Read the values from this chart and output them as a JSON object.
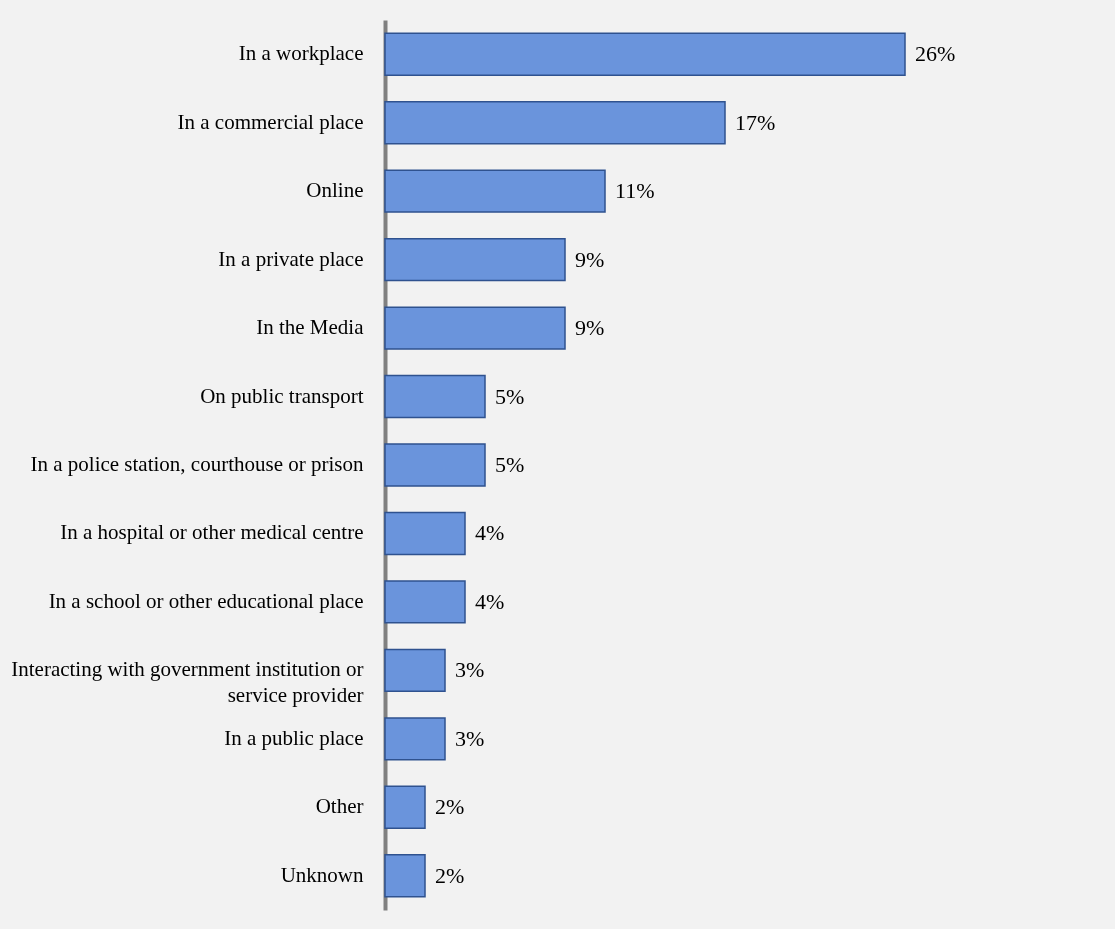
{
  "chart_data": {
    "type": "bar",
    "orientation": "horizontal",
    "categories": [
      "In a workplace",
      "In a commercial place",
      "Online",
      "In a private place",
      "In the Media",
      "On public transport",
      "In a police station, courthouse or prison",
      "In a hospital or other medical centre",
      "In a school or other educational place",
      "Interacting with government institution or service provider",
      "In a public place",
      "Other",
      "Unknown"
    ],
    "values": [
      26,
      17,
      11,
      9,
      9,
      5,
      5,
      4,
      4,
      3,
      3,
      2,
      2
    ],
    "value_labels": [
      "26%",
      "17%",
      "11%",
      "9%",
      "9%",
      "5%",
      "5%",
      "4%",
      "4%",
      "3%",
      "3%",
      "2%",
      "2%"
    ],
    "color": "#6a94dc",
    "tick_labels": "y"
  }
}
